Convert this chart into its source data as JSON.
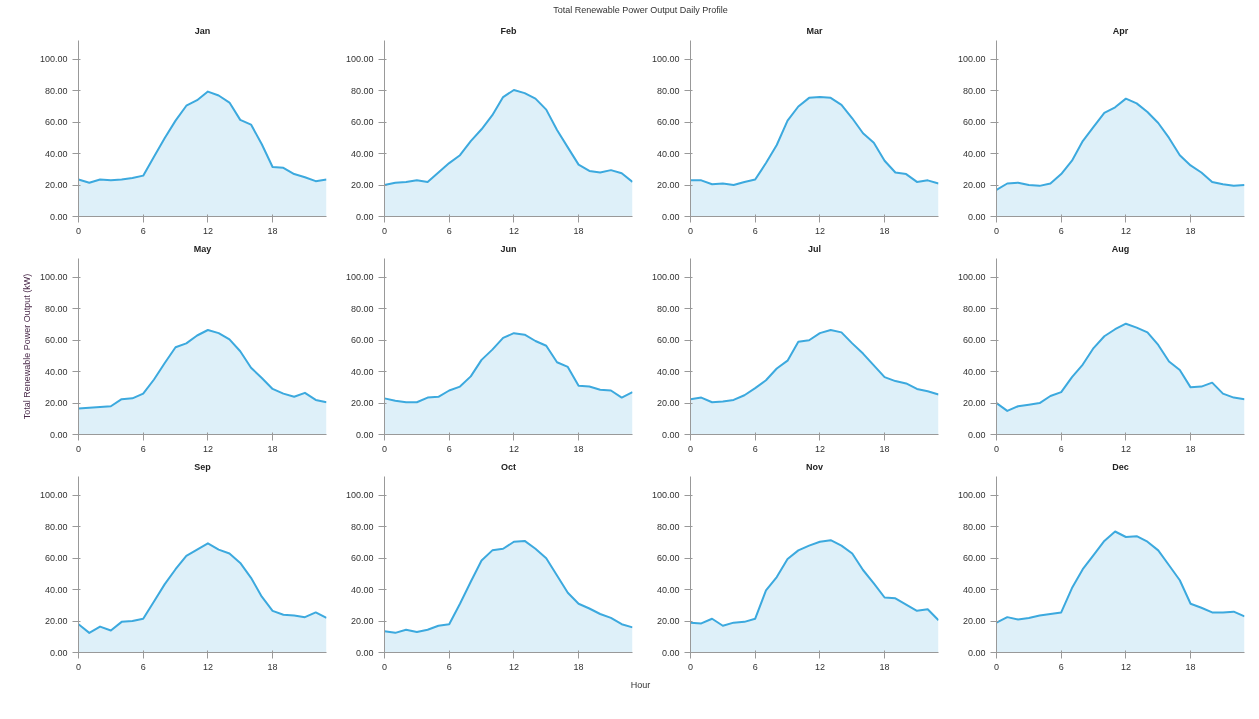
{
  "chart_data": [
    {
      "type": "area",
      "title": "Jan",
      "annotations": [
        "Total Renewable Power Output Daily Profile"
      ],
      "color": "#3ca9de",
      "x": [
        0,
        1,
        2,
        3,
        4,
        5,
        6,
        7,
        8,
        9,
        10,
        11,
        12,
        13,
        14,
        15,
        16,
        17,
        18,
        19,
        20,
        21,
        22,
        23
      ],
      "values": [
        23.5,
        21.5,
        23.5,
        23,
        23.5,
        24.5,
        26,
        38,
        50,
        61,
        70.5,
        74,
        79.5,
        77,
        72.5,
        61.5,
        58.5,
        46,
        31.5,
        31,
        27,
        25,
        22.5,
        23.5
      ],
      "xlim": [
        0,
        23
      ],
      "xticks": [
        0,
        6,
        12,
        18
      ],
      "ylim": [
        0,
        112
      ],
      "yticks": [
        {
          "value": 0,
          "label": "0.00"
        },
        {
          "value": 20,
          "label": "20.00"
        },
        {
          "value": 40,
          "label": "40.00"
        },
        {
          "value": 60,
          "label": "60.00"
        },
        {
          "value": 80,
          "label": "80.00"
        },
        {
          "value": 100,
          "label": "100.00"
        }
      ],
      "grid": false
    },
    {
      "type": "area",
      "title": "Feb",
      "color": "#3ca9de",
      "x": [
        0,
        1,
        2,
        3,
        4,
        5,
        6,
        7,
        8,
        9,
        10,
        11,
        12,
        13,
        14,
        15,
        16,
        17,
        18,
        19,
        20,
        21,
        22,
        23
      ],
      "values": [
        20,
        21.5,
        22,
        23,
        22,
        28,
        34,
        39,
        48,
        55.5,
        64.5,
        76,
        80.5,
        78.5,
        75,
        68,
        55,
        44,
        33,
        29,
        28,
        29.5,
        27.5,
        22
      ],
      "xlim": [
        0,
        23
      ],
      "xticks": [
        0,
        6,
        12,
        18
      ],
      "ylim": [
        0,
        112
      ],
      "yticks": [
        {
          "value": 0,
          "label": "0.00"
        },
        {
          "value": 20,
          "label": "20.00"
        },
        {
          "value": 40,
          "label": "40.00"
        },
        {
          "value": 60,
          "label": "60.00"
        },
        {
          "value": 80,
          "label": "80.00"
        },
        {
          "value": 100,
          "label": "100.00"
        }
      ],
      "grid": false
    },
    {
      "type": "area",
      "title": "Mar",
      "color": "#3ca9de",
      "x": [
        0,
        1,
        2,
        3,
        4,
        5,
        6,
        7,
        8,
        9,
        10,
        11,
        12,
        13,
        14,
        15,
        16,
        17,
        18,
        19,
        20,
        21,
        22,
        23
      ],
      "values": [
        23,
        23,
        20.5,
        21,
        20,
        22,
        23.5,
        34,
        45.5,
        61,
        70,
        75.5,
        76,
        75.5,
        71,
        62.5,
        53,
        47,
        35.5,
        28,
        27,
        22,
        23,
        21
      ],
      "xlim": [
        0,
        23
      ],
      "xticks": [
        0,
        6,
        12,
        18
      ],
      "ylim": [
        0,
        112
      ],
      "yticks": [
        {
          "value": 0,
          "label": "0.00"
        },
        {
          "value": 20,
          "label": "20.00"
        },
        {
          "value": 40,
          "label": "40.00"
        },
        {
          "value": 60,
          "label": "60.00"
        },
        {
          "value": 80,
          "label": "80.00"
        },
        {
          "value": 100,
          "label": "100.00"
        }
      ],
      "grid": false
    },
    {
      "type": "area",
      "title": "Apr",
      "color": "#3ca9de",
      "x": [
        0,
        1,
        2,
        3,
        4,
        5,
        6,
        7,
        8,
        9,
        10,
        11,
        12,
        13,
        14,
        15,
        16,
        17,
        18,
        19,
        20,
        21,
        22,
        23
      ],
      "values": [
        17,
        21,
        21.5,
        20,
        19.5,
        21,
        27,
        35.5,
        48,
        57,
        66,
        69.5,
        75,
        72,
        66.5,
        59.5,
        50,
        39,
        32.5,
        28,
        22,
        20.5,
        19.5,
        20
      ],
      "xlim": [
        0,
        23
      ],
      "xticks": [
        0,
        6,
        12,
        18
      ],
      "ylim": [
        0,
        112
      ],
      "yticks": [
        {
          "value": 0,
          "label": "0.00"
        },
        {
          "value": 20,
          "label": "20.00"
        },
        {
          "value": 40,
          "label": "40.00"
        },
        {
          "value": 60,
          "label": "60.00"
        },
        {
          "value": 80,
          "label": "80.00"
        },
        {
          "value": 100,
          "label": "100.00"
        }
      ],
      "grid": false
    },
    {
      "type": "area",
      "title": "May",
      "ylabel": "Total Renewable Power Output (kW)",
      "color": "#3ca9de",
      "x": [
        0,
        1,
        2,
        3,
        4,
        5,
        6,
        7,
        8,
        9,
        10,
        11,
        12,
        13,
        14,
        15,
        16,
        17,
        18,
        19,
        20,
        21,
        22,
        23
      ],
      "values": [
        16.5,
        17,
        17.5,
        18,
        22.5,
        23,
        26,
        35,
        45.5,
        55.5,
        58,
        63,
        66.5,
        64.5,
        60.5,
        53,
        42.5,
        36,
        29,
        26,
        24,
        26.5,
        22,
        20.5
      ],
      "xlim": [
        0,
        23
      ],
      "xticks": [
        0,
        6,
        12,
        18
      ],
      "ylim": [
        0,
        112
      ],
      "yticks": [
        {
          "value": 0,
          "label": "0.00"
        },
        {
          "value": 20,
          "label": "20.00"
        },
        {
          "value": 40,
          "label": "40.00"
        },
        {
          "value": 60,
          "label": "60.00"
        },
        {
          "value": 80,
          "label": "80.00"
        },
        {
          "value": 100,
          "label": "100.00"
        }
      ],
      "grid": false
    },
    {
      "type": "area",
      "title": "Jun",
      "color": "#3ca9de",
      "x": [
        0,
        1,
        2,
        3,
        4,
        5,
        6,
        7,
        8,
        9,
        10,
        11,
        12,
        13,
        14,
        15,
        16,
        17,
        18,
        19,
        20,
        21,
        22,
        23
      ],
      "values": [
        23,
        21.5,
        20.5,
        20.5,
        23.5,
        24,
        28,
        30.5,
        37,
        47.5,
        54,
        61.5,
        64.5,
        63.5,
        59.5,
        56.5,
        46,
        43,
        31,
        30.5,
        28.5,
        28,
        23.5,
        27
      ],
      "xlim": [
        0,
        23
      ],
      "xticks": [
        0,
        6,
        12,
        18
      ],
      "ylim": [
        0,
        112
      ],
      "yticks": [
        {
          "value": 0,
          "label": "0.00"
        },
        {
          "value": 20,
          "label": "20.00"
        },
        {
          "value": 40,
          "label": "40.00"
        },
        {
          "value": 60,
          "label": "60.00"
        },
        {
          "value": 80,
          "label": "80.00"
        },
        {
          "value": 100,
          "label": "100.00"
        }
      ],
      "grid": false
    },
    {
      "type": "area",
      "title": "Jul",
      "color": "#3ca9de",
      "x": [
        0,
        1,
        2,
        3,
        4,
        5,
        6,
        7,
        8,
        9,
        10,
        11,
        12,
        13,
        14,
        15,
        16,
        17,
        18,
        19,
        20,
        21,
        22,
        23
      ],
      "values": [
        22.5,
        23.5,
        20.5,
        21,
        22,
        25,
        29.5,
        34.5,
        42,
        47,
        59,
        60,
        64.5,
        66.5,
        65,
        58,
        51.5,
        44,
        36.5,
        34,
        32.5,
        29,
        27.5,
        25.5
      ],
      "xlim": [
        0,
        23
      ],
      "xticks": [
        0,
        6,
        12,
        18
      ],
      "ylim": [
        0,
        112
      ],
      "yticks": [
        {
          "value": 0,
          "label": "0.00"
        },
        {
          "value": 20,
          "label": "20.00"
        },
        {
          "value": 40,
          "label": "40.00"
        },
        {
          "value": 60,
          "label": "60.00"
        },
        {
          "value": 80,
          "label": "80.00"
        },
        {
          "value": 100,
          "label": "100.00"
        }
      ],
      "grid": false
    },
    {
      "type": "area",
      "title": "Aug",
      "color": "#3ca9de",
      "x": [
        0,
        1,
        2,
        3,
        4,
        5,
        6,
        7,
        8,
        9,
        10,
        11,
        12,
        13,
        14,
        15,
        16,
        17,
        18,
        19,
        20,
        21,
        22,
        23
      ],
      "values": [
        20,
        15,
        18,
        19,
        20,
        24.5,
        27,
        36.5,
        44.5,
        55,
        62.5,
        67,
        70.5,
        68,
        65,
        57,
        46.5,
        41,
        30,
        30.5,
        33,
        26,
        23.5,
        22.5
      ],
      "xlim": [
        0,
        23
      ],
      "xticks": [
        0,
        6,
        12,
        18
      ],
      "ylim": [
        0,
        112
      ],
      "yticks": [
        {
          "value": 0,
          "label": "0.00"
        },
        {
          "value": 20,
          "label": "20.00"
        },
        {
          "value": 40,
          "label": "40.00"
        },
        {
          "value": 60,
          "label": "60.00"
        },
        {
          "value": 80,
          "label": "80.00"
        },
        {
          "value": 100,
          "label": "100.00"
        }
      ],
      "grid": false
    },
    {
      "type": "area",
      "title": "Sep",
      "color": "#3ca9de",
      "x": [
        0,
        1,
        2,
        3,
        4,
        5,
        6,
        7,
        8,
        9,
        10,
        11,
        12,
        13,
        14,
        15,
        16,
        17,
        18,
        19,
        20,
        21,
        22,
        23
      ],
      "values": [
        18,
        12.5,
        16.5,
        14,
        19.5,
        20,
        21.5,
        32.5,
        43.5,
        53,
        61.5,
        65.5,
        69.5,
        65.5,
        63,
        57,
        47.5,
        35.5,
        26.5,
        24,
        23.5,
        22.5,
        25.5,
        22
      ],
      "xlim": [
        0,
        23
      ],
      "xticks": [
        0,
        6,
        12,
        18
      ],
      "ylim": [
        0,
        112
      ],
      "yticks": [
        {
          "value": 0,
          "label": "0.00"
        },
        {
          "value": 20,
          "label": "20.00"
        },
        {
          "value": 40,
          "label": "40.00"
        },
        {
          "value": 60,
          "label": "60.00"
        },
        {
          "value": 80,
          "label": "80.00"
        },
        {
          "value": 100,
          "label": "100.00"
        }
      ],
      "grid": false
    },
    {
      "type": "area",
      "title": "Oct",
      "xlabel": "Hour",
      "color": "#3ca9de",
      "x": [
        0,
        1,
        2,
        3,
        4,
        5,
        6,
        7,
        8,
        9,
        10,
        11,
        12,
        13,
        14,
        15,
        16,
        17,
        18,
        19,
        20,
        21,
        22,
        23
      ],
      "values": [
        13.5,
        12.5,
        14.5,
        13,
        14.5,
        17,
        18,
        31,
        45,
        58.5,
        65,
        66,
        70.5,
        71,
        66,
        60,
        49,
        38,
        31,
        28,
        24.5,
        22,
        18,
        16
      ],
      "xlim": [
        0,
        23
      ],
      "xticks": [
        0,
        6,
        12,
        18
      ],
      "ylim": [
        0,
        112
      ],
      "yticks": [
        {
          "value": 0,
          "label": "0.00"
        },
        {
          "value": 20,
          "label": "20.00"
        },
        {
          "value": 40,
          "label": "40.00"
        },
        {
          "value": 60,
          "label": "60.00"
        },
        {
          "value": 80,
          "label": "80.00"
        },
        {
          "value": 100,
          "label": "100.00"
        }
      ],
      "grid": false
    },
    {
      "type": "area",
      "title": "Nov",
      "color": "#3ca9de",
      "x": [
        0,
        1,
        2,
        3,
        4,
        5,
        6,
        7,
        8,
        9,
        10,
        11,
        12,
        13,
        14,
        15,
        16,
        17,
        18,
        19,
        20,
        21,
        22,
        23
      ],
      "values": [
        19,
        18.5,
        21.5,
        17,
        19,
        19.5,
        21.5,
        39.5,
        48,
        59.5,
        65,
        68,
        70.5,
        71.5,
        68,
        63,
        52.5,
        44,
        35,
        34.5,
        30.5,
        26.5,
        27.5,
        20.5
      ],
      "xlim": [
        0,
        23
      ],
      "xticks": [
        0,
        6,
        12,
        18
      ],
      "ylim": [
        0,
        112
      ],
      "yticks": [
        {
          "value": 0,
          "label": "0.00"
        },
        {
          "value": 20,
          "label": "20.00"
        },
        {
          "value": 40,
          "label": "40.00"
        },
        {
          "value": 60,
          "label": "60.00"
        },
        {
          "value": 80,
          "label": "80.00"
        },
        {
          "value": 100,
          "label": "100.00"
        }
      ],
      "grid": false
    },
    {
      "type": "area",
      "title": "Dec",
      "color": "#3ca9de",
      "x": [
        0,
        1,
        2,
        3,
        4,
        5,
        6,
        7,
        8,
        9,
        10,
        11,
        12,
        13,
        14,
        15,
        16,
        17,
        18,
        19,
        20,
        21,
        22,
        23
      ],
      "values": [
        19,
        22.5,
        21,
        22,
        23.5,
        24.5,
        25.5,
        41,
        53,
        62,
        71,
        77,
        73.5,
        74,
        70.5,
        65,
        55.5,
        46,
        31,
        28.5,
        25.5,
        25.5,
        26,
        23
      ],
      "xlim": [
        0,
        23
      ],
      "xticks": [
        0,
        6,
        12,
        18
      ],
      "ylim": [
        0,
        112
      ],
      "yticks": [
        {
          "value": 0,
          "label": "0.00"
        },
        {
          "value": 20,
          "label": "20.00"
        },
        {
          "value": 40,
          "label": "40.00"
        },
        {
          "value": 60,
          "label": "60.00"
        },
        {
          "value": 80,
          "label": "80.00"
        },
        {
          "value": 100,
          "label": "100.00"
        }
      ],
      "grid": false
    }
  ]
}
